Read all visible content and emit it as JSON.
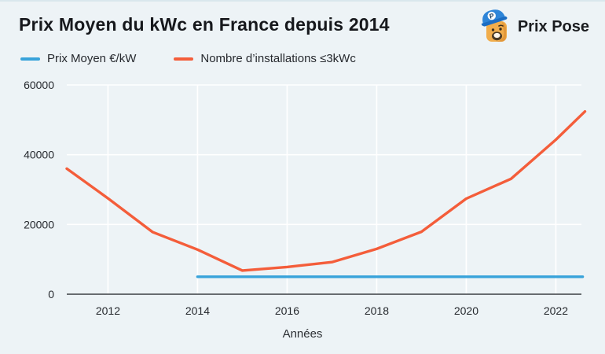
{
  "header": {
    "title": "Prix Moyen du kWc en France depuis 2014",
    "brand": "Prix Pose"
  },
  "legend": [
    {
      "label": "Prix Moyen €/kW",
      "color": "#38a3da"
    },
    {
      "label": "Nombre d’installations ≤3kWc",
      "color": "#f45d3a"
    }
  ],
  "colors": {
    "background": "#edf3f6",
    "grid": "#ffffff",
    "axis": "#55585c",
    "tick_text": "#26292e",
    "blue_series": "#38a3da",
    "orange_series": "#f45d3a"
  },
  "chart_data": {
    "type": "line",
    "title": "Prix Moyen du kWc en France depuis 2014",
    "xlabel": "Années",
    "ylabel": "",
    "xlim": [
      2011.08,
      2022.65
    ],
    "ylim": [
      0,
      60000
    ],
    "xticks": [
      2012,
      2014,
      2016,
      2018,
      2020,
      2022
    ],
    "yticks": [
      0,
      20000,
      40000,
      60000
    ],
    "grid": true,
    "legend_position": "top-left",
    "series": [
      {
        "name": "Prix Moyen €/kW",
        "color": "#38a3da",
        "points": [
          [
            2014,
            5000
          ],
          [
            2022.6,
            5000
          ]
        ]
      },
      {
        "name": "Nombre d’installations ≤3kWc",
        "color": "#f45d3a",
        "points": [
          [
            2011.08,
            36000
          ],
          [
            2012,
            27500
          ],
          [
            2013,
            17800
          ],
          [
            2014,
            12800
          ],
          [
            2015,
            6800
          ],
          [
            2016,
            7800
          ],
          [
            2017,
            9200
          ],
          [
            2018,
            13000
          ],
          [
            2019,
            17900
          ],
          [
            2020,
            27400
          ],
          [
            2021,
            33100
          ],
          [
            2022,
            44300
          ],
          [
            2022.65,
            52400
          ]
        ]
      }
    ]
  }
}
